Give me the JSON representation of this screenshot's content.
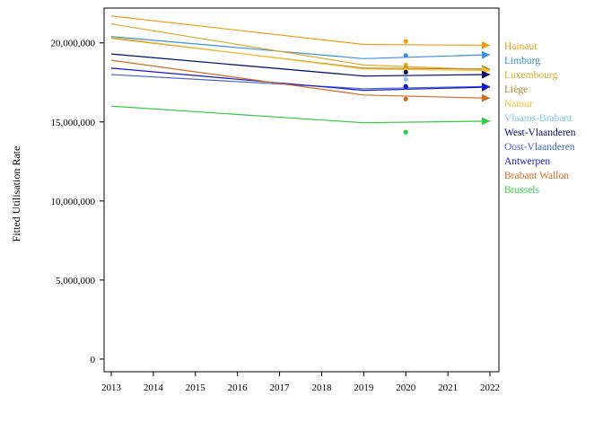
{
  "chart_data": {
    "type": "line",
    "title": "",
    "xlabel": "",
    "ylabel": "Fitted Utilisation Rate",
    "x_ticks": [
      "2013",
      "2014",
      "2015",
      "2016",
      "2017",
      "2018",
      "2019",
      "2020",
      "2021",
      "2022"
    ],
    "y_ticks": [
      "0",
      "5,000,000",
      "10,000,000",
      "15,000,000",
      "20,000,000"
    ],
    "xlim": [
      2013,
      2022
    ],
    "ylim": [
      -800000,
      22200000
    ],
    "grid": false,
    "legend_position": "right",
    "series": [
      {
        "name": "Hainaut",
        "color": "#f39c12",
        "x": [
          2013,
          2019,
          2022
        ],
        "y": [
          21700000,
          19900000,
          19850000
        ],
        "observed_2020": 20100000
      },
      {
        "name": "Limburg",
        "color": "#3a8fe0",
        "x": [
          2013,
          2019,
          2022
        ],
        "y": [
          20400000,
          19000000,
          19250000
        ],
        "observed_2020": 19200000
      },
      {
        "name": "Luxembourg",
        "color": "#e0a828",
        "x": [
          2013,
          2019,
          2022
        ],
        "y": [
          21200000,
          18600000,
          18300000
        ],
        "observed_2020": 18600000
      },
      {
        "name": "Liège",
        "color": "#b8862a",
        "x": [
          2013,
          2019,
          2022
        ],
        "y": [
          20300000,
          18400000,
          18350000
        ],
        "observed_2020": 18400000
      },
      {
        "name": "Namur",
        "color": "#f1c232",
        "x": [
          2013,
          2019,
          2022
        ],
        "y": [
          20350000,
          18350000,
          18250000
        ],
        "observed_2020": 18300000
      },
      {
        "name": "Vlaams-Brabant",
        "color": "#7fc7f2",
        "x": [
          2013,
          2019,
          2022
        ],
        "y": [
          19300000,
          17900000,
          18000000
        ],
        "observed_2020": 17700000
      },
      {
        "name": "West-Vlaanderen",
        "color": "#0a0a6e",
        "x": [
          2013,
          2019,
          2022
        ],
        "y": [
          19300000,
          17900000,
          18000000
        ],
        "observed_2020": 18150000
      },
      {
        "name": "Oost-Vlaanderen",
        "color": "#4466cc",
        "x": [
          2013,
          2019,
          2022
        ],
        "y": [
          18000000,
          17100000,
          17250000
        ],
        "observed_2020": 17200000
      },
      {
        "name": "Antwerpen",
        "color": "#1414d0",
        "x": [
          2013,
          2019,
          2022
        ],
        "y": [
          18400000,
          17000000,
          17200000
        ],
        "observed_2020": 17250000
      },
      {
        "name": "Brabant Wallon",
        "color": "#d2691e",
        "x": [
          2013,
          2019,
          2022
        ],
        "y": [
          18900000,
          16700000,
          16500000
        ],
        "observed_2020": 16450000
      },
      {
        "name": "Brussels",
        "color": "#2ecc40",
        "x": [
          2013,
          2019,
          2022
        ],
        "y": [
          16000000,
          14950000,
          15050000
        ],
        "observed_2020": 14350000
      }
    ]
  }
}
